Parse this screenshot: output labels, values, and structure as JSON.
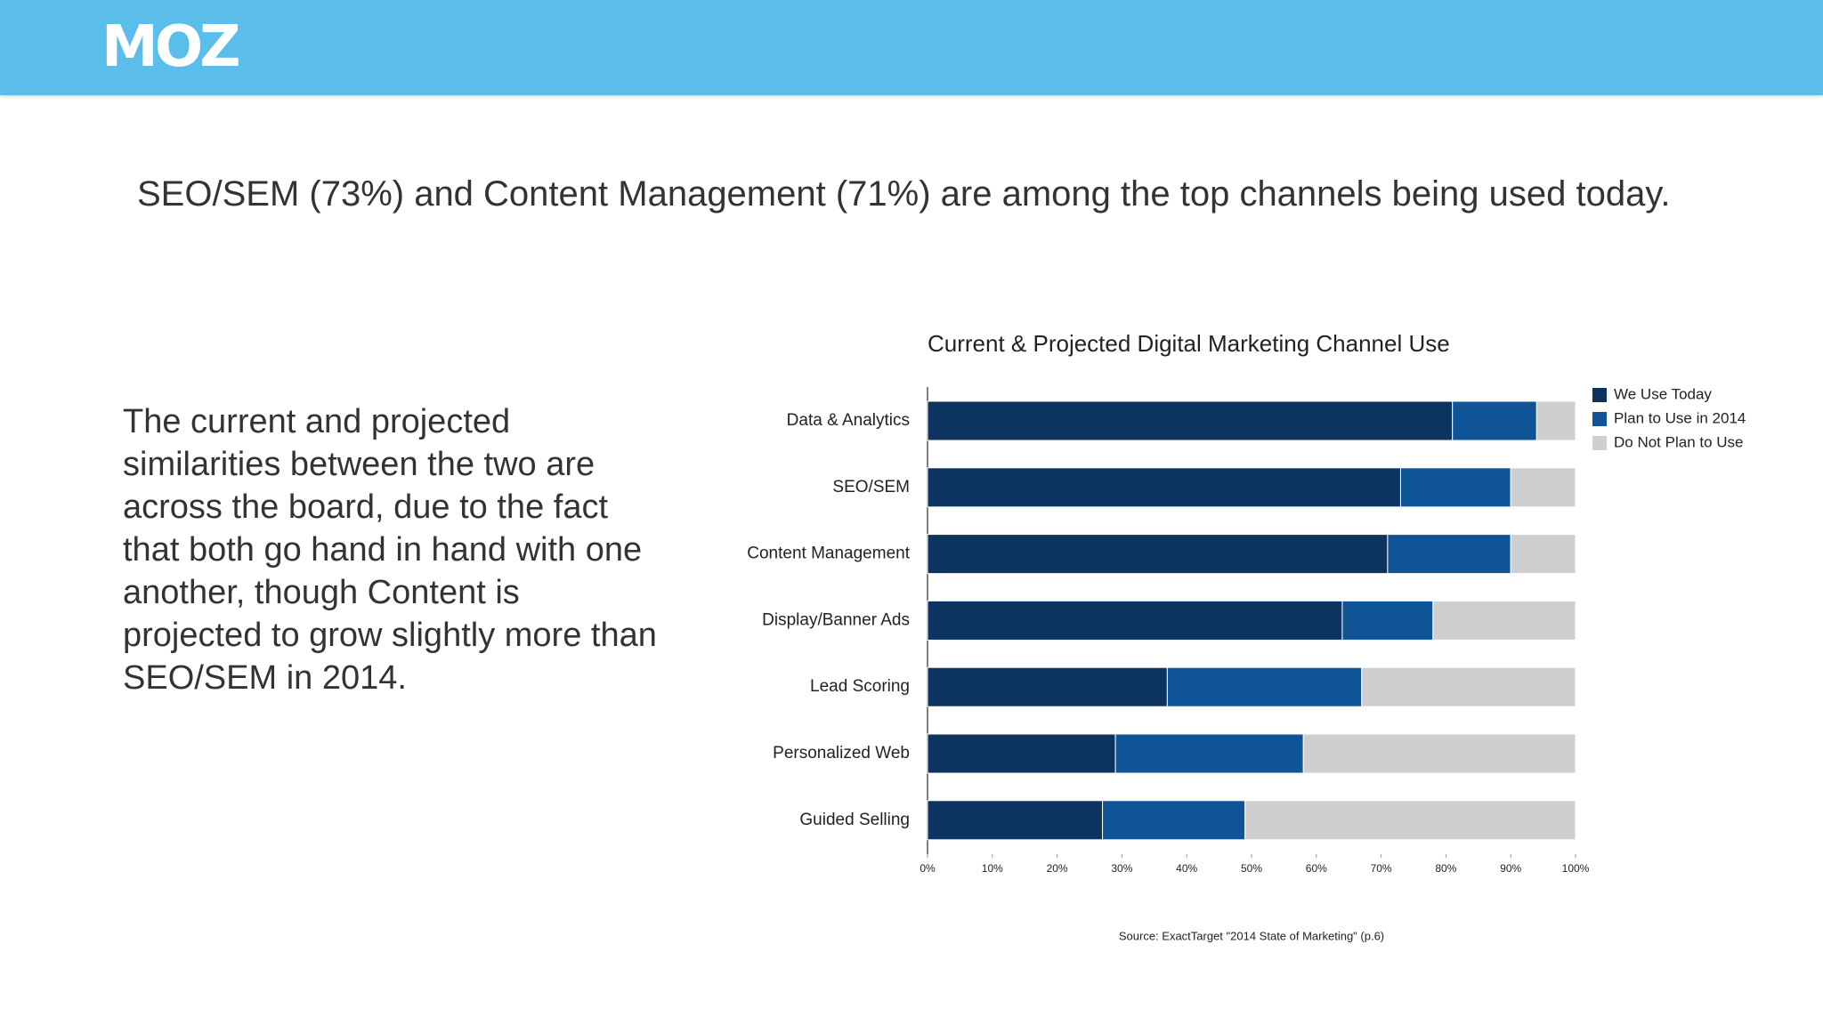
{
  "logo": "MOZ",
  "headline": "SEO/SEM (73%) and Content Management (71%) are among the top channels being used today.",
  "body_text": "The current and projected similarities between the two are across the board, due to the fact that both go hand in hand with one another, though Content is projected to grow slightly more than SEO/SEM in 2014.",
  "chart_data": {
    "type": "stacked-bar-horizontal",
    "title": "Current & Projected Digital Marketing Channel Use",
    "source": "Source: ExactTarget \"2014 State of Marketing\" (p.6)",
    "categories": [
      "Data & Analytics",
      "SEO/SEM",
      "Content Management",
      "Display/Banner Ads",
      "Lead Scoring",
      "Personalized Web",
      "Guided Selling"
    ],
    "series": [
      {
        "name": "We Use Today",
        "color": "#0d3461",
        "values": [
          81,
          73,
          71,
          64,
          37,
          29,
          27
        ]
      },
      {
        "name": "Plan to Use in 2014",
        "color": "#0e5496",
        "values": [
          13,
          17,
          19,
          14,
          30,
          29,
          22
        ]
      },
      {
        "name": "Do Not Plan to Use",
        "color": "#cfcfd1",
        "values": [
          6,
          10,
          10,
          22,
          33,
          42,
          51
        ]
      }
    ],
    "xlim": [
      0,
      100
    ],
    "xticks": [
      {
        "value": 0,
        "label": "0%"
      },
      {
        "value": 10,
        "label": "10%"
      },
      {
        "value": 20,
        "label": "20%"
      },
      {
        "value": 30,
        "label": "30%"
      },
      {
        "value": 40,
        "label": "40%"
      },
      {
        "value": 50,
        "label": "50%"
      },
      {
        "value": 60,
        "label": "60%"
      },
      {
        "value": 70,
        "label": "70%"
      },
      {
        "value": 80,
        "label": "80%"
      },
      {
        "value": 90,
        "label": "90%"
      },
      {
        "value": 100,
        "label": "100%"
      }
    ],
    "legend": "right",
    "grid": false
  }
}
